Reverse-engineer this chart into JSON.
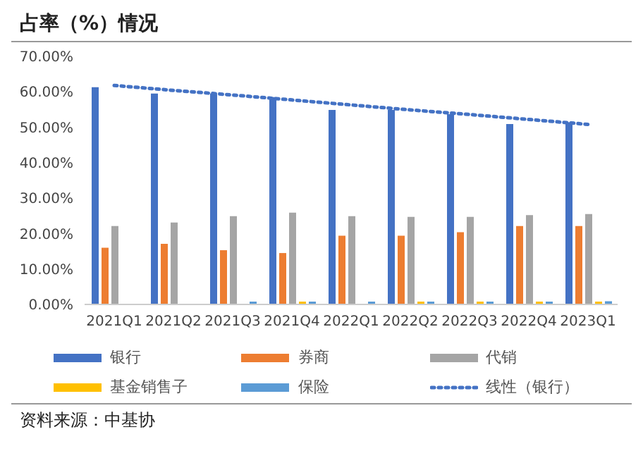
{
  "chart_data": {
    "type": "bar",
    "title": "占率（%）情况",
    "categories": [
      "2021Q1",
      "2021Q2",
      "2021Q3",
      "2021Q4",
      "2022Q1",
      "2022Q2",
      "2022Q3",
      "2022Q4",
      "2023Q1"
    ],
    "series": [
      {
        "name": "银行",
        "color": "#4472c4",
        "values": [
          61.3,
          59.5,
          59.5,
          58.5,
          54.9,
          54.9,
          53.7,
          50.9,
          51.4
        ]
      },
      {
        "name": "券商",
        "color": "#ed7d31",
        "values": [
          16.0,
          17.1,
          15.3,
          14.5,
          19.4,
          19.4,
          20.4,
          22.1,
          22.1
        ]
      },
      {
        "name": "代销",
        "color": "#a5a5a5",
        "values": [
          22.1,
          23.1,
          24.9,
          25.9,
          24.9,
          24.7,
          24.7,
          25.2,
          25.5
        ]
      },
      {
        "name": "基金销售子",
        "color": "#ffc000",
        "values": [
          0,
          0,
          0,
          0.2,
          0,
          0.2,
          0.2,
          0.2,
          0.2
        ]
      },
      {
        "name": "保险",
        "color": "#5b9bd5",
        "values": [
          0,
          0,
          0.3,
          0.3,
          0.5,
          0.5,
          0.6,
          0.8,
          0.9
        ]
      },
      {
        "name": "线性（银行）",
        "type": "line",
        "line_style": "dotted",
        "color": "#4472c4",
        "values": [
          61.8,
          60.4,
          59.1,
          57.7,
          56.3,
          54.9,
          53.6,
          52.2,
          50.8
        ]
      }
    ],
    "ylim": [
      0,
      70
    ],
    "yticks": [
      {
        "value": 0,
        "label": "0.00%"
      },
      {
        "value": 10,
        "label": "10.00%"
      },
      {
        "value": 20,
        "label": "20.00%"
      },
      {
        "value": 30,
        "label": "30.00%"
      },
      {
        "value": 40,
        "label": "40.00%"
      },
      {
        "value": 50,
        "label": "50.00%"
      },
      {
        "value": 60,
        "label": "60.00%"
      },
      {
        "value": 70,
        "label": "70.00%"
      }
    ],
    "grid": false,
    "legend": "bottom",
    "marker": "none",
    "annotations": [
      "资料来源：中基协"
    ]
  }
}
